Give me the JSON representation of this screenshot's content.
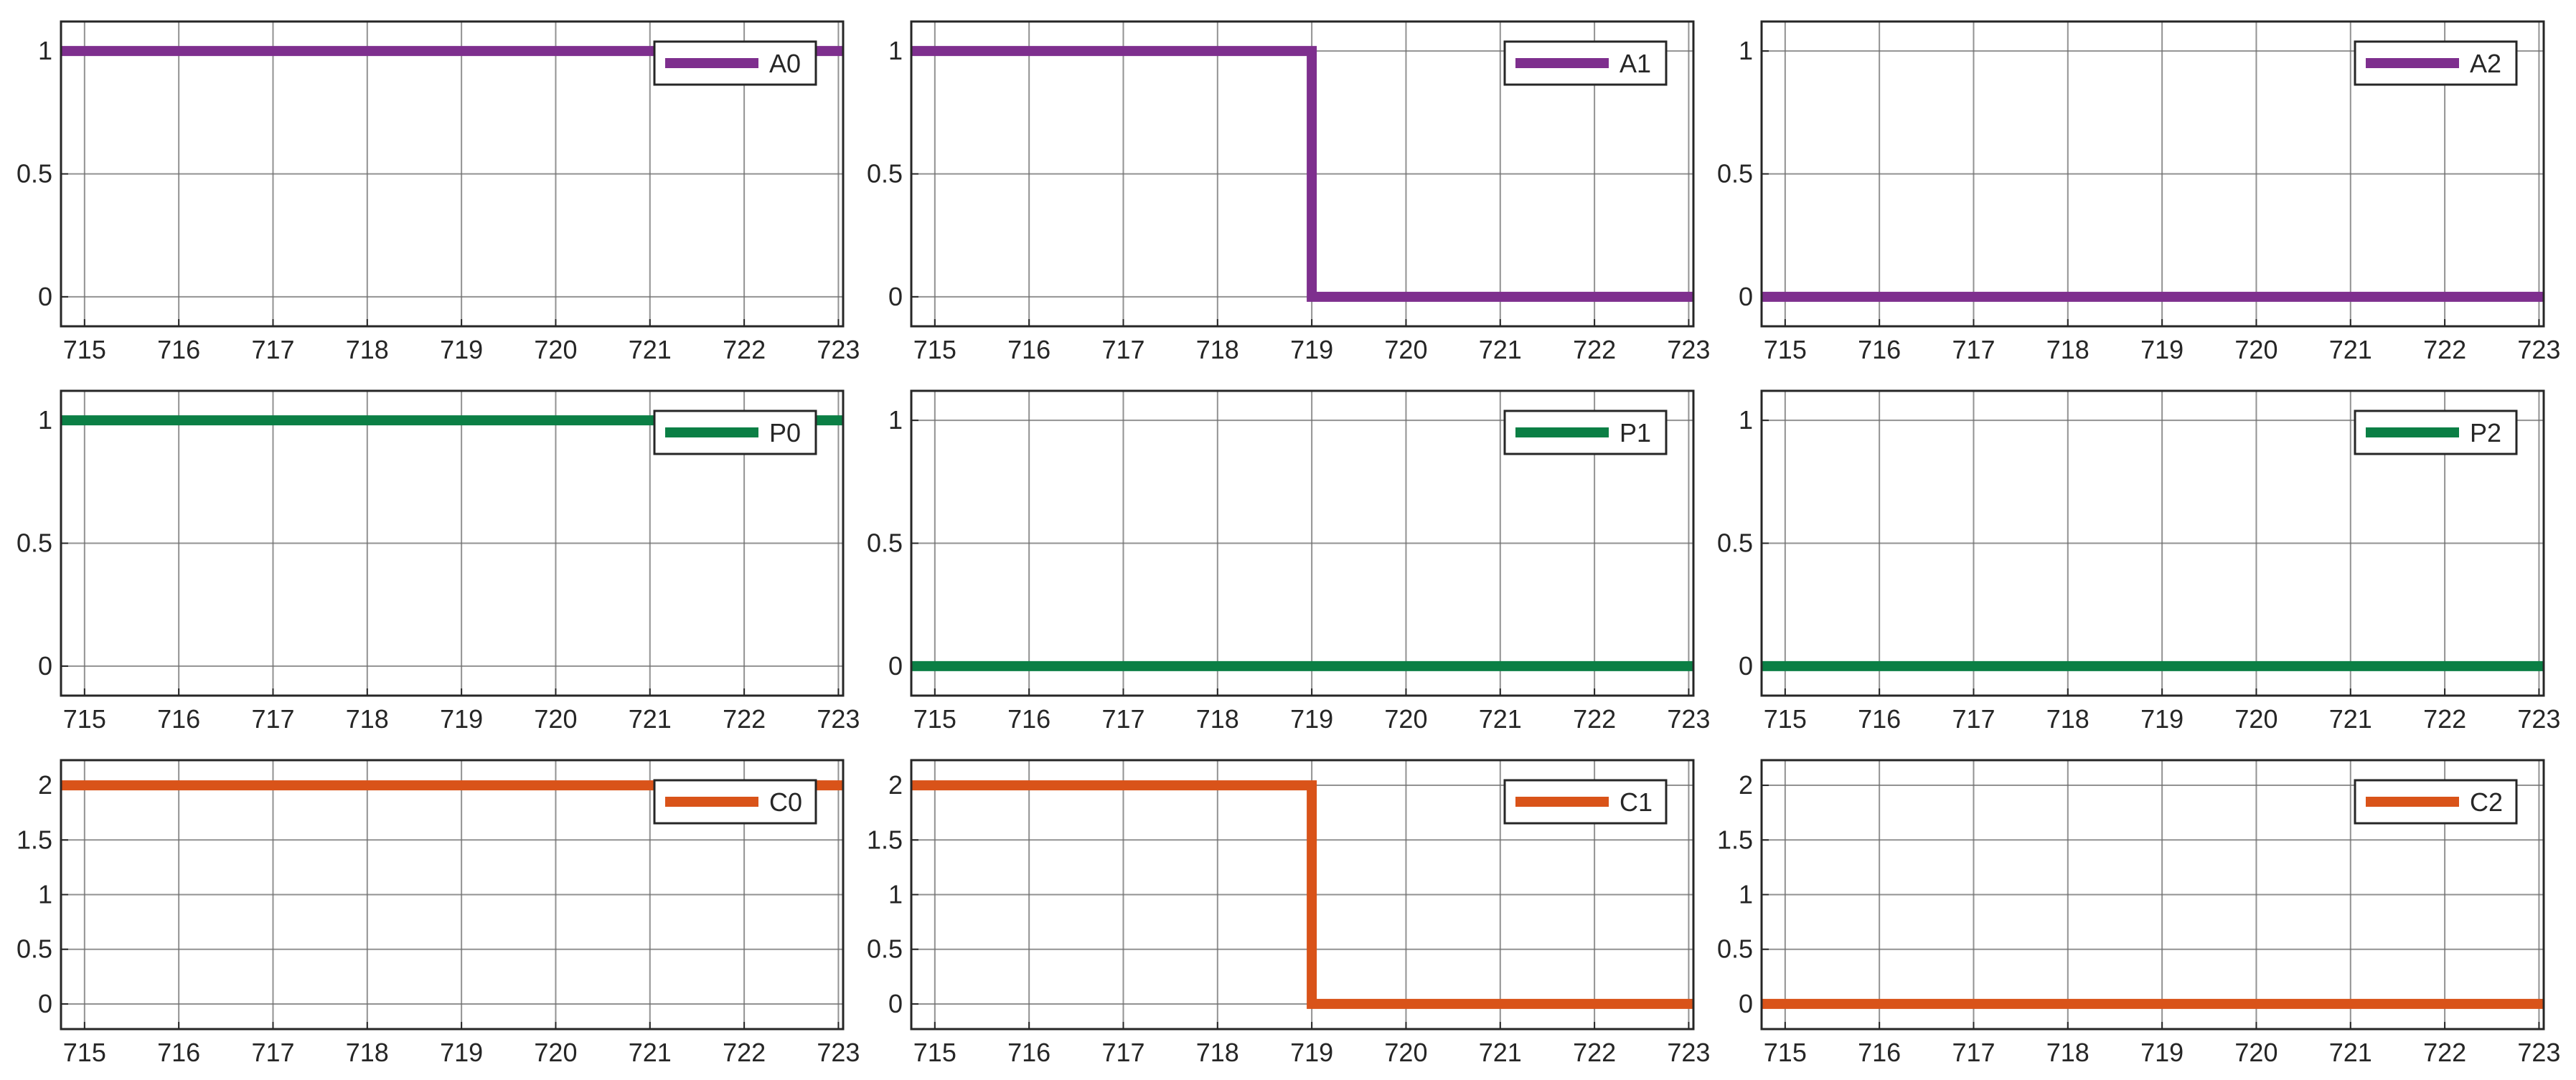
{
  "figure": {
    "rows": 3,
    "cols": 3,
    "grid": true,
    "legend_placement": "top-right",
    "colors": {
      "purple": "#7E2F8E",
      "green": "#0B7F45",
      "orange": "#D95319",
      "grid": "#6E6E6E",
      "axes": "#262626"
    }
  },
  "chart_data": [
    {
      "type": "line",
      "step": true,
      "xlim": [
        714.75,
        723.05
      ],
      "ylim": [
        -0.12,
        1.12
      ],
      "xticks": [
        "715",
        "716",
        "717",
        "718",
        "719",
        "720",
        "721",
        "722",
        "723"
      ],
      "yticks": [
        "0",
        "0.5",
        "1"
      ],
      "series": [
        {
          "name": "A0",
          "color": "#7E2F8E",
          "x": [
            714.75,
            723.05
          ],
          "y": [
            1,
            1
          ]
        }
      ]
    },
    {
      "type": "line",
      "step": true,
      "xlim": [
        714.75,
        723.05
      ],
      "ylim": [
        -0.12,
        1.12
      ],
      "xticks": [
        "715",
        "716",
        "717",
        "718",
        "719",
        "720",
        "721",
        "722",
        "723"
      ],
      "yticks": [
        "0",
        "0.5",
        "1"
      ],
      "series": [
        {
          "name": "A1",
          "color": "#7E2F8E",
          "x": [
            714.75,
            719,
            719,
            723.05
          ],
          "y": [
            1,
            1,
            0,
            0
          ]
        }
      ]
    },
    {
      "type": "line",
      "step": true,
      "xlim": [
        714.75,
        723.05
      ],
      "ylim": [
        -0.12,
        1.12
      ],
      "xticks": [
        "715",
        "716",
        "717",
        "718",
        "719",
        "720",
        "721",
        "722",
        "723"
      ],
      "yticks": [
        "0",
        "0.5",
        "1"
      ],
      "series": [
        {
          "name": "A2",
          "color": "#7E2F8E",
          "x": [
            714.75,
            723.05
          ],
          "y": [
            0,
            0
          ]
        }
      ]
    },
    {
      "type": "line",
      "step": true,
      "xlim": [
        714.75,
        723.05
      ],
      "ylim": [
        -0.12,
        1.12
      ],
      "xticks": [
        "715",
        "716",
        "717",
        "718",
        "719",
        "720",
        "721",
        "722",
        "723"
      ],
      "yticks": [
        "0",
        "0.5",
        "1"
      ],
      "series": [
        {
          "name": "P0",
          "color": "#0B7F45",
          "x": [
            714.75,
            723.05
          ],
          "y": [
            1,
            1
          ]
        }
      ]
    },
    {
      "type": "line",
      "step": true,
      "xlim": [
        714.75,
        723.05
      ],
      "ylim": [
        -0.12,
        1.12
      ],
      "xticks": [
        "715",
        "716",
        "717",
        "718",
        "719",
        "720",
        "721",
        "722",
        "723"
      ],
      "yticks": [
        "0",
        "0.5",
        "1"
      ],
      "series": [
        {
          "name": "P1",
          "color": "#0B7F45",
          "x": [
            714.75,
            723.05
          ],
          "y": [
            0,
            0
          ]
        }
      ]
    },
    {
      "type": "line",
      "step": true,
      "xlim": [
        714.75,
        723.05
      ],
      "ylim": [
        -0.12,
        1.12
      ],
      "xticks": [
        "715",
        "716",
        "717",
        "718",
        "719",
        "720",
        "721",
        "722",
        "723"
      ],
      "yticks": [
        "0",
        "0.5",
        "1"
      ],
      "series": [
        {
          "name": "P2",
          "color": "#0B7F45",
          "x": [
            714.75,
            723.05
          ],
          "y": [
            0,
            0
          ]
        }
      ]
    },
    {
      "type": "line",
      "step": true,
      "xlim": [
        714.75,
        723.05
      ],
      "ylim": [
        -0.23,
        2.23
      ],
      "xticks": [
        "715",
        "716",
        "717",
        "718",
        "719",
        "720",
        "721",
        "722",
        "723"
      ],
      "yticks": [
        "0",
        "0.5",
        "1",
        "1.5",
        "2"
      ],
      "series": [
        {
          "name": "C0",
          "color": "#D95319",
          "x": [
            714.75,
            723.05
          ],
          "y": [
            2,
            2
          ]
        }
      ]
    },
    {
      "type": "line",
      "step": true,
      "xlim": [
        714.75,
        723.05
      ],
      "ylim": [
        -0.23,
        2.23
      ],
      "xticks": [
        "715",
        "716",
        "717",
        "718",
        "719",
        "720",
        "721",
        "722",
        "723"
      ],
      "yticks": [
        "0",
        "0.5",
        "1",
        "1.5",
        "2"
      ],
      "series": [
        {
          "name": "C1",
          "color": "#D95319",
          "x": [
            714.75,
            719,
            719,
            723.05
          ],
          "y": [
            2,
            2,
            0,
            0
          ]
        }
      ]
    },
    {
      "type": "line",
      "step": true,
      "xlim": [
        714.75,
        723.05
      ],
      "ylim": [
        -0.23,
        2.23
      ],
      "xticks": [
        "715",
        "716",
        "717",
        "718",
        "719",
        "720",
        "721",
        "722",
        "723"
      ],
      "yticks": [
        "0",
        "0.5",
        "1",
        "1.5",
        "2"
      ],
      "series": [
        {
          "name": "C2",
          "color": "#D95319",
          "x": [
            714.75,
            723.05
          ],
          "y": [
            0,
            0
          ]
        }
      ]
    }
  ]
}
